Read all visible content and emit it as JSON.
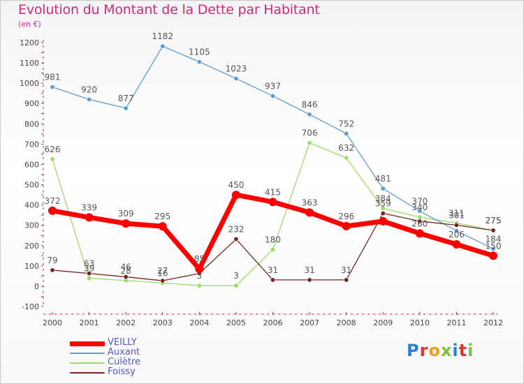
{
  "title": "Evolution du Montant de la Dette par Habitant",
  "subtitle": "(en €)",
  "logo_text": "Proxiti",
  "chart_data": {
    "type": "line",
    "title": "Evolution du Montant de la Dette par Habitant",
    "ylabel": "(en €)",
    "x": [
      "2000",
      "2001",
      "2002",
      "2003",
      "2004",
      "2005",
      "2006",
      "2007",
      "2008",
      "2009",
      "2010",
      "2011",
      "2012"
    ],
    "ylim": [
      -100,
      1200
    ],
    "yticks": [
      -100,
      0,
      100,
      200,
      300,
      400,
      500,
      600,
      700,
      800,
      900,
      1000,
      1100,
      1200
    ],
    "grid": false,
    "legend_position": "bottom-left",
    "series": [
      {
        "name": "VEILLY",
        "color": "#ff0000",
        "values": [
          372,
          339,
          309,
          295,
          85,
          450,
          415,
          363,
          296,
          320,
          260,
          206,
          150
        ],
        "labels": [
          "372",
          "339",
          "309",
          "295",
          "85",
          "450",
          "415",
          "363",
          "296",
          "",
          "260",
          "206",
          "150"
        ]
      },
      {
        "name": "Auxant",
        "color": "#5b9bd5",
        "values": [
          981,
          920,
          877,
          1182,
          1105,
          1023,
          937,
          846,
          752,
          481,
          370,
          273,
          184
        ],
        "labels": [
          "981",
          "920",
          "877",
          "1182",
          "1105",
          "1023",
          "937",
          "846",
          "752",
          "481",
          "370",
          "",
          "184"
        ]
      },
      {
        "name": "Culètre",
        "color": "#99dd66",
        "values": [
          626,
          39,
          28,
          16,
          3,
          3,
          180,
          706,
          632,
          384,
          340,
          311,
          275
        ],
        "labels": [
          "626",
          "39",
          "28",
          "16",
          "3",
          "3",
          "180",
          "706",
          "632",
          "384",
          "340",
          "311",
          "275"
        ]
      },
      {
        "name": "Foissy",
        "color": "#772222",
        "values": [
          79,
          63,
          46,
          27,
          63,
          232,
          31,
          31,
          31,
          359,
          320,
          301,
          275
        ],
        "labels": [
          "79",
          "63",
          "46",
          "27",
          "",
          "232",
          "31",
          "31",
          "31",
          "359",
          "",
          "301",
          "275"
        ]
      }
    ]
  }
}
